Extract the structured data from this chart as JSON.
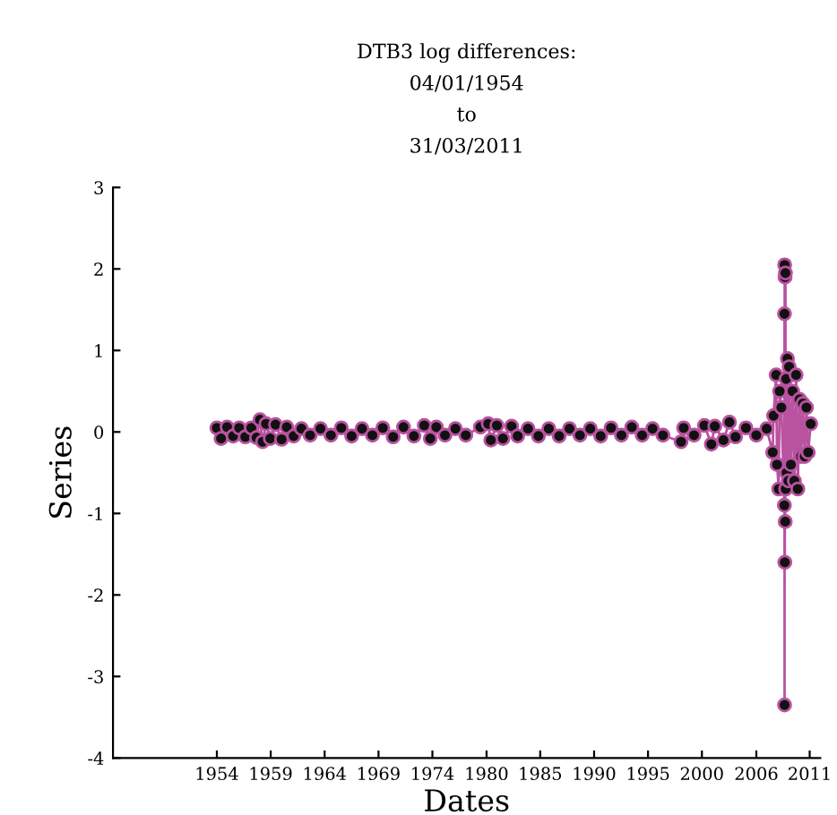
{
  "chart_data": {
    "type": "line",
    "title": "DTB3 log differences:\n04/01/1954\nto\n31/03/2011",
    "xlabel": "Dates",
    "ylabel": "Series",
    "xlim": [
      "1944-01-01",
      "2012-03-01"
    ],
    "xticks": [
      {
        "value": "1954-01-04",
        "label": "1954"
      },
      {
        "value": "1959-03-15",
        "label": "1959"
      },
      {
        "value": "1964-05-25",
        "label": "1964"
      },
      {
        "value": "1969-08-04",
        "label": "1969"
      },
      {
        "value": "1974-10-14",
        "label": "1974"
      },
      {
        "value": "1980-01-02",
        "label": "1980"
      },
      {
        "value": "1985-03-05",
        "label": "1985"
      },
      {
        "value": "1990-05-15",
        "label": "1990"
      },
      {
        "value": "1995-07-26",
        "label": "1995"
      },
      {
        "value": "2000-10-04",
        "label": "2000"
      },
      {
        "value": "2006-01-02",
        "label": "2006"
      },
      {
        "value": "2011-02-23",
        "label": "2011"
      }
    ],
    "ylim": [
      -4,
      3
    ],
    "yticks": [
      -4,
      -3,
      -2,
      -1,
      0,
      1,
      2,
      3
    ],
    "marker": "circle",
    "line_style": "solid",
    "series": [
      {
        "color": "#b9529f",
        "x": [
          "1954-01-04",
          "1954-06",
          "1955-01",
          "1955-08",
          "1956-03",
          "1956-10",
          "1957-05",
          "1957-11",
          "1958-03",
          "1958-06",
          "1958-10",
          "1959-03",
          "1959-09",
          "1960-04",
          "1960-10",
          "1961-06",
          "1962-03",
          "1963-01",
          "1964-01",
          "1965-01",
          "1966-01",
          "1967-01",
          "1968-01",
          "1969-01",
          "1970-01",
          "1971-01",
          "1972-01",
          "1973-01",
          "1974-01",
          "1974-08",
          "1975-03",
          "1976-01",
          "1977-01",
          "1978-01",
          "1979-06",
          "1980-03",
          "1980-06",
          "1981-01",
          "1981-08",
          "1982-06",
          "1983-01",
          "1984-01",
          "1985-01",
          "1986-01",
          "1987-01",
          "1988-01",
          "1989-01",
          "1990-01",
          "1991-01",
          "1992-01",
          "1993-01",
          "1994-01",
          "1995-01",
          "1996-01",
          "1997-01",
          "1998-10",
          "1999-01",
          "2000-01",
          "2001-01",
          "2001-09",
          "2002-01",
          "2002-11",
          "2003-06",
          "2004-01",
          "2005-01",
          "2006-01",
          "2007-01",
          "2007-08",
          "2007-09",
          "2007-12",
          "2008-01",
          "2008-03",
          "2008-04",
          "2008-06",
          "2008-09-15",
          "2008-09-18",
          "2008-09-22",
          "2008-09-25",
          "2008-10-01",
          "2008-10-08",
          "2008-10-15",
          "2008-10-22",
          "2008-11-01",
          "2008-11-15",
          "2008-12-01",
          "2009-01",
          "2009-02",
          "2009-03",
          "2009-05",
          "2009-07",
          "2009-09",
          "2009-11",
          "2010-01",
          "2010-03",
          "2010-05",
          "2010-07",
          "2010-09",
          "2010-11",
          "2011-01",
          "2011-03-31"
        ],
        "values": [
          0.05,
          -0.08,
          0.06,
          -0.05,
          0.05,
          -0.06,
          0.05,
          -0.07,
          0.15,
          -0.12,
          0.1,
          -0.08,
          0.09,
          -0.09,
          0.06,
          -0.05,
          0.04,
          -0.04,
          0.04,
          -0.04,
          0.05,
          -0.05,
          0.04,
          -0.04,
          0.05,
          -0.06,
          0.06,
          -0.05,
          0.08,
          -0.08,
          0.06,
          -0.04,
          0.04,
          -0.04,
          0.06,
          0.1,
          -0.1,
          0.08,
          -0.08,
          0.07,
          -0.05,
          0.04,
          -0.05,
          0.04,
          -0.05,
          0.04,
          -0.04,
          0.04,
          -0.05,
          0.05,
          -0.04,
          0.06,
          -0.04,
          0.04,
          -0.04,
          -0.12,
          0.05,
          -0.04,
          0.08,
          -0.15,
          0.07,
          -0.1,
          0.12,
          -0.06,
          0.05,
          -0.04,
          0.04,
          -0.25,
          0.2,
          0.7,
          -0.4,
          -0.7,
          0.5,
          0.3,
          -0.9,
          1.45,
          -3.35,
          2.05,
          -1.6,
          1.9,
          -1.1,
          1.95,
          -0.7,
          0.65,
          -0.5,
          0.9,
          -0.6,
          0.8,
          -0.4,
          0.5,
          -0.6,
          0.7,
          -0.7,
          0.4,
          -0.3,
          0.35,
          -0.3,
          0.3,
          -0.25,
          0.1
        ]
      }
    ]
  }
}
